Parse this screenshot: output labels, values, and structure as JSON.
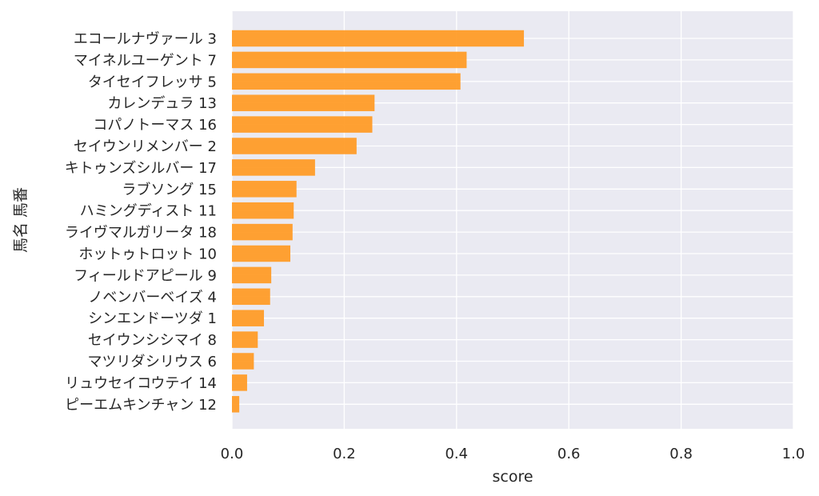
{
  "chart_data": {
    "type": "bar",
    "orientation": "horizontal",
    "xlabel": "score",
    "ylabel": "馬名 馬番",
    "xlim": [
      0.0,
      1.0
    ],
    "xticks": [
      "0.0",
      "0.2",
      "0.4",
      "0.6",
      "0.8",
      "1.0"
    ],
    "grid": true,
    "bar_color": "#ff9922",
    "plot_background": "#eaeaf2",
    "categories": [
      "エコールナヴァール 3",
      "マイネルユーゲント 7",
      "タイセイフレッサ 5",
      "カレンデュラ 13",
      "コパノトーマス 16",
      "セイウンリメンバー 2",
      "キトゥンズシルバー 17",
      "ラブソング 15",
      "ハミングディスト 11",
      "ライヴマルガリータ 18",
      "ホットゥトロット 10",
      "フィールドアピール 9",
      "ノベンバーベイズ 4",
      "シンエンドーツダ 1",
      "セイウンシシマイ 8",
      "マツリダシリウス 6",
      "リュウセイコウテイ 14",
      "ピーエムキンチャン 12"
    ],
    "values": [
      0.52,
      0.418,
      0.407,
      0.254,
      0.25,
      0.222,
      0.148,
      0.115,
      0.11,
      0.108,
      0.104,
      0.07,
      0.068,
      0.057,
      0.046,
      0.039,
      0.027,
      0.013
    ]
  }
}
